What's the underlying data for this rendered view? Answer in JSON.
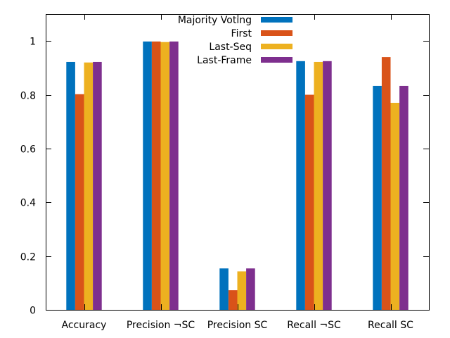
{
  "chart_data": {
    "type": "bar",
    "title": "",
    "xlabel": "",
    "ylabel": "",
    "ylim": [
      0,
      1.1
    ],
    "yticks": [
      0,
      0.2,
      0.4,
      0.6,
      0.8,
      1
    ],
    "ytick_labels": [
      "0",
      "0.2",
      "0.4",
      "0.6",
      "0.8",
      "1"
    ],
    "grid": false,
    "legend_position": "top-center",
    "categories": [
      "Accuracy",
      "Precision ¬SC",
      "Precision SC",
      "Recall ¬SC",
      "Recall SC"
    ],
    "series": [
      {
        "name": "Majority Voting",
        "color": "#0072bd",
        "values": [
          0.922,
          0.998,
          0.154,
          0.925,
          0.833
        ]
      },
      {
        "name": "First",
        "color": "#d95319",
        "values": [
          0.802,
          0.998,
          0.073,
          0.8,
          0.94
        ]
      },
      {
        "name": "Last-Seq",
        "color": "#edb120",
        "values": [
          0.92,
          0.996,
          0.143,
          0.922,
          0.77
        ]
      },
      {
        "name": "Last-Frame",
        "color": "#7e2f8e",
        "values": [
          0.922,
          0.998,
          0.154,
          0.925,
          0.833
        ]
      }
    ]
  }
}
